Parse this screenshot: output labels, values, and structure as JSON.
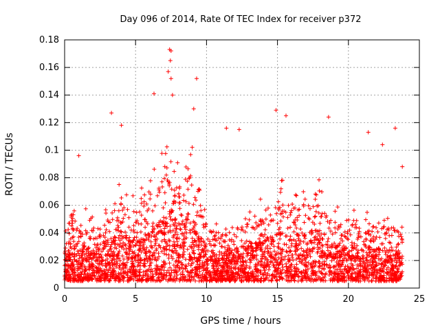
{
  "chart_data": {
    "type": "scatter",
    "title": "Day 096 of 2014, Rate Of TEC Index for receiver p372",
    "xlabel": "GPS time / hours",
    "ylabel": "ROTI / TECUs",
    "xlim": [
      0,
      25
    ],
    "ylim": [
      0,
      0.18
    ],
    "xticks": [
      0,
      5,
      10,
      15,
      20,
      25
    ],
    "xtick_labels": [
      "0",
      "5",
      "10",
      "15",
      "20",
      "25"
    ],
    "yticks": [
      0,
      0.02,
      0.04,
      0.06,
      0.08,
      0.1,
      0.12,
      0.14,
      0.16,
      0.18
    ],
    "ytick_labels": [
      "0",
      "0.02",
      "0.04",
      "0.06",
      "0.08",
      "0.1",
      "0.12",
      "0.14",
      "0.16",
      "0.18"
    ],
    "grid": true,
    "marker": "plus",
    "marker_color": "#ff0000",
    "series": [
      {
        "name": "ROTI",
        "x_range": [
          0,
          23.8
        ],
        "density_profile": [
          [
            0.0,
            0.03
          ],
          [
            0.5,
            0.05
          ],
          [
            1.0,
            0.045
          ],
          [
            2.0,
            0.04
          ],
          [
            3.0,
            0.045
          ],
          [
            4.0,
            0.06
          ],
          [
            5.0,
            0.05
          ],
          [
            6.0,
            0.06
          ],
          [
            7.0,
            0.075
          ],
          [
            7.5,
            0.09
          ],
          [
            8.0,
            0.07
          ],
          [
            9.0,
            0.08
          ],
          [
            10.0,
            0.04
          ],
          [
            11.0,
            0.035
          ],
          [
            12.0,
            0.04
          ],
          [
            13.0,
            0.045
          ],
          [
            14.0,
            0.05
          ],
          [
            15.0,
            0.06
          ],
          [
            16.0,
            0.055
          ],
          [
            17.0,
            0.06
          ],
          [
            18.0,
            0.065
          ],
          [
            19.0,
            0.045
          ],
          [
            20.0,
            0.04
          ],
          [
            21.0,
            0.045
          ],
          [
            22.0,
            0.04
          ],
          [
            23.0,
            0.04
          ],
          [
            23.8,
            0.035
          ]
        ],
        "notable_points": [
          {
            "x": 7.4,
            "y": 0.173
          },
          {
            "x": 7.5,
            "y": 0.172
          },
          {
            "x": 7.45,
            "y": 0.165
          },
          {
            "x": 7.3,
            "y": 0.157
          },
          {
            "x": 7.5,
            "y": 0.152
          },
          {
            "x": 9.3,
            "y": 0.152
          },
          {
            "x": 7.6,
            "y": 0.14
          },
          {
            "x": 6.3,
            "y": 0.141
          },
          {
            "x": 9.1,
            "y": 0.13
          },
          {
            "x": 3.3,
            "y": 0.127
          },
          {
            "x": 14.9,
            "y": 0.129
          },
          {
            "x": 15.6,
            "y": 0.125
          },
          {
            "x": 18.6,
            "y": 0.124
          },
          {
            "x": 23.3,
            "y": 0.116
          },
          {
            "x": 4.0,
            "y": 0.118
          },
          {
            "x": 12.3,
            "y": 0.115
          },
          {
            "x": 21.4,
            "y": 0.113
          },
          {
            "x": 11.4,
            "y": 0.116
          },
          {
            "x": 22.4,
            "y": 0.104
          },
          {
            "x": 23.8,
            "y": 0.088
          },
          {
            "x": 1.0,
            "y": 0.096
          },
          {
            "x": 0.3,
            "y": 0.047
          }
        ]
      }
    ]
  }
}
